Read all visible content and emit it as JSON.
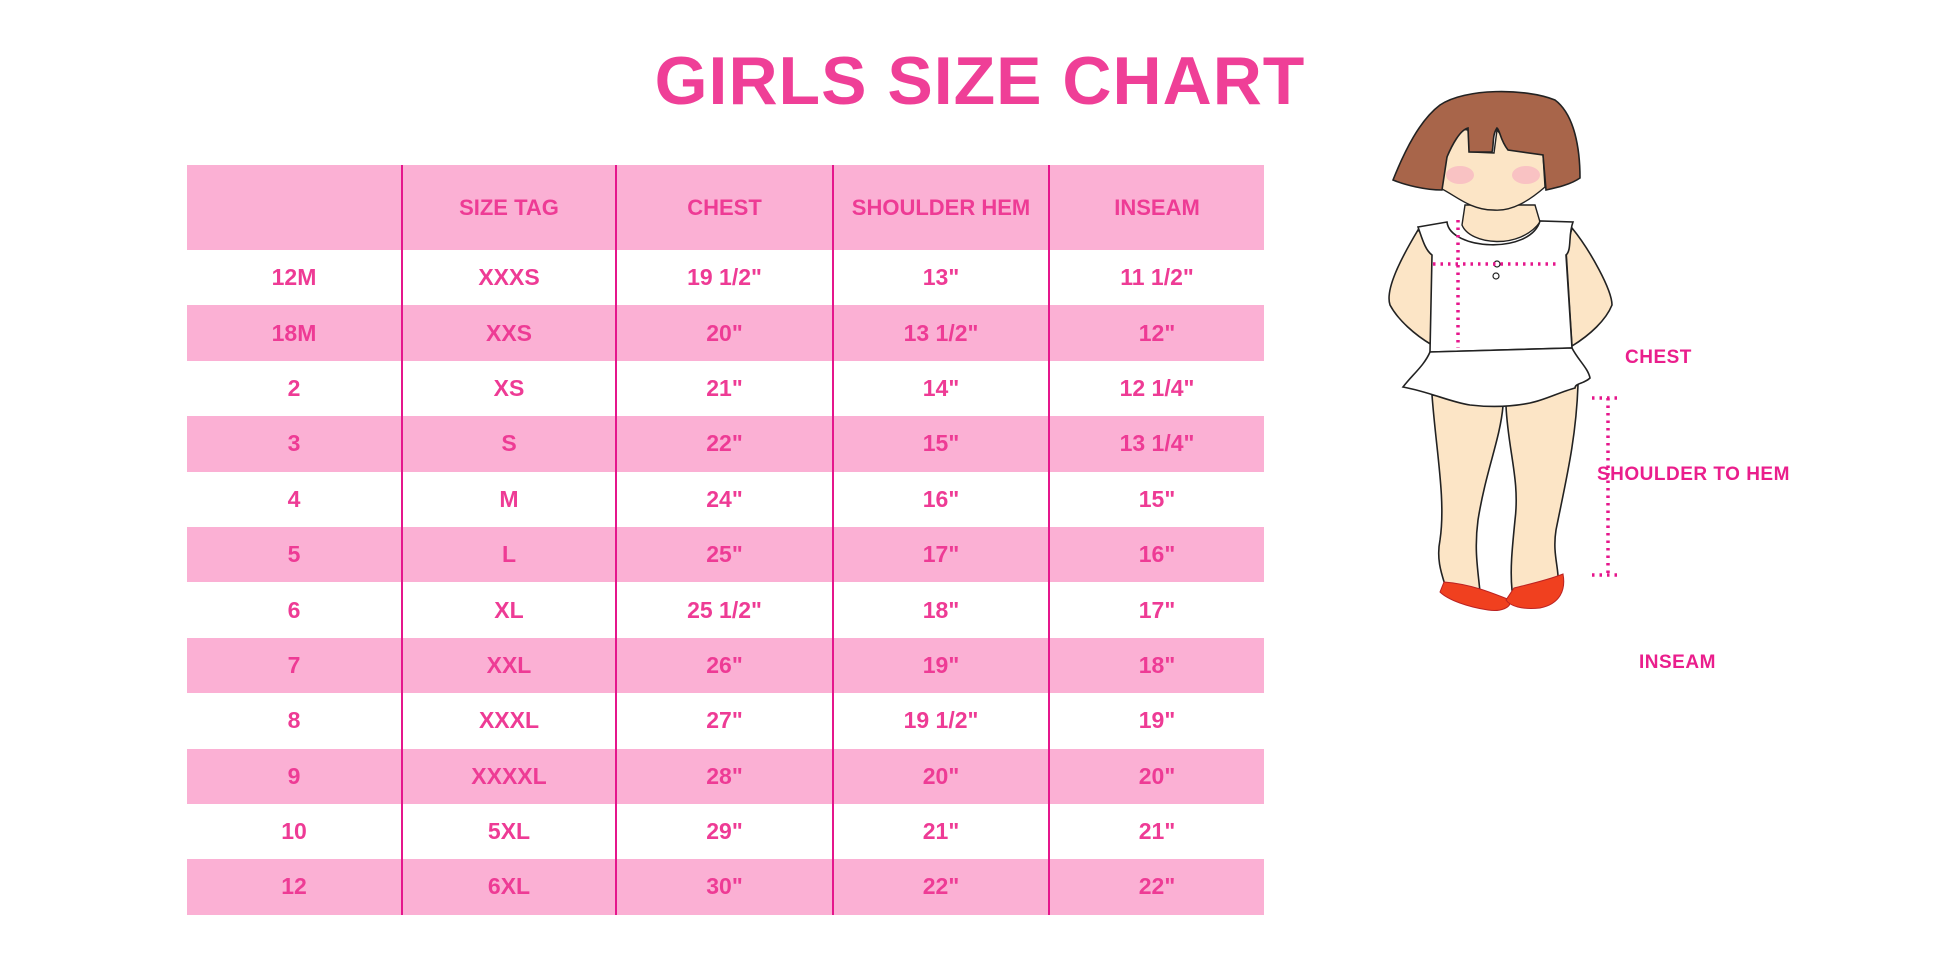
{
  "title": "GIRLS SIZE CHART",
  "table": {
    "headers": [
      "",
      "SIZE TAG",
      "CHEST",
      "SHOULDER HEM",
      "INSEAM"
    ],
    "rows": [
      [
        "12M",
        "XXXS",
        "19 1/2\"",
        "13\"",
        "11 1/2\""
      ],
      [
        "18M",
        "XXS",
        "20\"",
        "13 1/2\"",
        "12\""
      ],
      [
        "2",
        "XS",
        "21\"",
        "14\"",
        "12 1/4\""
      ],
      [
        "3",
        "S",
        "22\"",
        "15\"",
        "13 1/4\""
      ],
      [
        "4",
        "M",
        "24\"",
        "16\"",
        "15\""
      ],
      [
        "5",
        "L",
        "25\"",
        "17\"",
        "16\""
      ],
      [
        "6",
        "XL",
        "25 1/2\"",
        "18\"",
        "17\""
      ],
      [
        "7",
        "XXL",
        "26\"",
        "19\"",
        "18\""
      ],
      [
        "8",
        "XXXL",
        "27\"",
        "19 1/2\"",
        "19\""
      ],
      [
        "9",
        "XXXXL",
        "28\"",
        "20\"",
        "20\""
      ],
      [
        "10",
        "5XL",
        "29\"",
        "21\"",
        "21\""
      ],
      [
        "12",
        "6XL",
        "30\"",
        "22\"",
        "22\""
      ]
    ]
  },
  "figure": {
    "labels": {
      "chest": "CHEST",
      "shoulder": "SHOULDER TO HEM",
      "inseam": "INSEAM"
    }
  },
  "colors": {
    "accent": "#ef3f97",
    "row_band": "#fbb0d4",
    "divider": "#e5168c",
    "hair": "#a8654a",
    "skin": "#fce5c6",
    "shoe": "#f0401f"
  }
}
